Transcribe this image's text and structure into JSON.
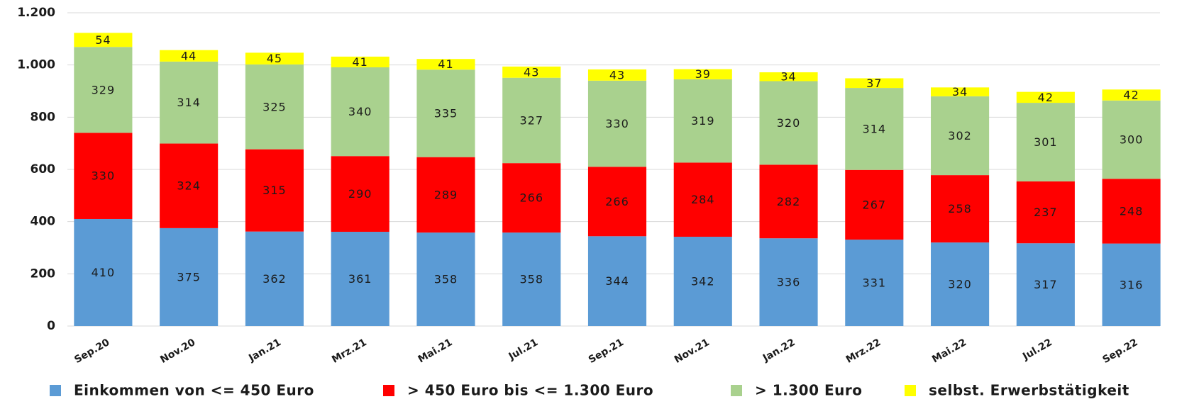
{
  "chart_data": {
    "type": "stacked_bar",
    "categories": [
      "Sep.20",
      "Nov.20",
      "Jan.21",
      "Mrz.21",
      "Mai.21",
      "Jul.21",
      "Sep.21",
      "Nov.21",
      "Jan.22",
      "Mrz.22",
      "Mai.22",
      "Jul.22",
      "Sep.22"
    ],
    "series": [
      {
        "name": "Einkommen von <= 450 Euro",
        "color": "#5b9bd5",
        "values": [
          410,
          375,
          362,
          361,
          358,
          358,
          344,
          342,
          336,
          331,
          320,
          317,
          316
        ]
      },
      {
        "name": "> 450 Euro bis <= 1.300 Euro",
        "color": "#ff0000",
        "values": [
          330,
          324,
          315,
          290,
          289,
          266,
          266,
          284,
          282,
          267,
          258,
          237,
          248
        ]
      },
      {
        "name": "> 1.300 Euro",
        "color": "#a9d18e",
        "values": [
          329,
          314,
          325,
          340,
          335,
          327,
          330,
          319,
          320,
          314,
          302,
          301,
          300
        ]
      },
      {
        "name": "selbst. Erwerbstätigkeit",
        "color": "#ffff00",
        "values": [
          54,
          44,
          45,
          41,
          41,
          43,
          43,
          39,
          34,
          37,
          34,
          42,
          42
        ]
      }
    ],
    "ylim": [
      0,
      1200
    ],
    "yticks": [
      0,
      200,
      400,
      600,
      800,
      {
        "value": 1000,
        "label": "1.000"
      },
      {
        "value": 1200,
        "label": "1.200"
      }
    ],
    "grid": true,
    "legend": "bottom"
  }
}
